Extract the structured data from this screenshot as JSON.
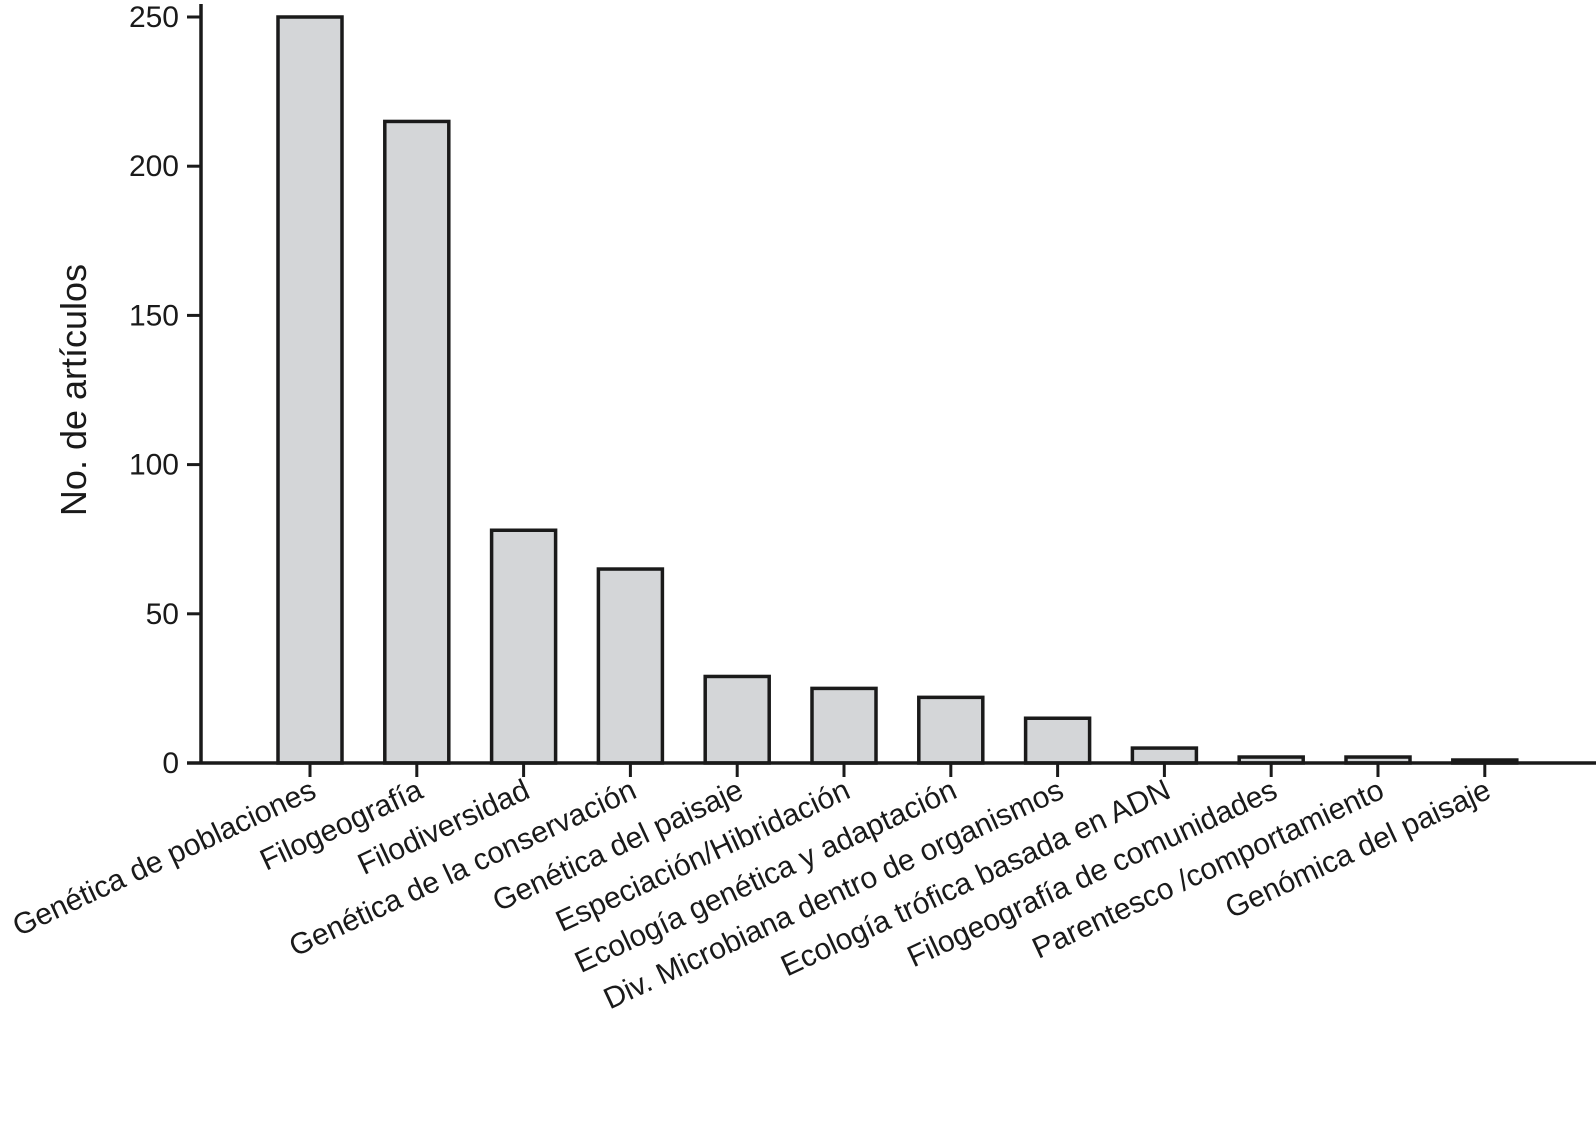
{
  "chart_data": {
    "type": "bar",
    "title": "",
    "xlabel": "",
    "ylabel": "No. de artículos",
    "ylim": [
      0,
      250
    ],
    "yticks": [
      0,
      50,
      100,
      150,
      200,
      250
    ],
    "grid": false,
    "categories": [
      "Genética de poblaciones",
      "Filogeografía",
      "Filodiversidad",
      "Genética de la conservación",
      "Genética del paisaje",
      "Especiación/Hibridación",
      "Ecología genética y adaptación",
      "Div. Microbiana dentro de organismos",
      "Ecología trófica basada en ADN",
      "Filogeografía de comunidades",
      "Parentesco /comportamiento",
      "Genómica del paisaje"
    ],
    "values": [
      250,
      215,
      78,
      65,
      29,
      25,
      22,
      15,
      5,
      2,
      2,
      1
    ],
    "colors": {
      "bar_fill": "#d4d6d8",
      "bar_stroke": "#1a1a1a",
      "axis": "#1a1a1a"
    }
  }
}
